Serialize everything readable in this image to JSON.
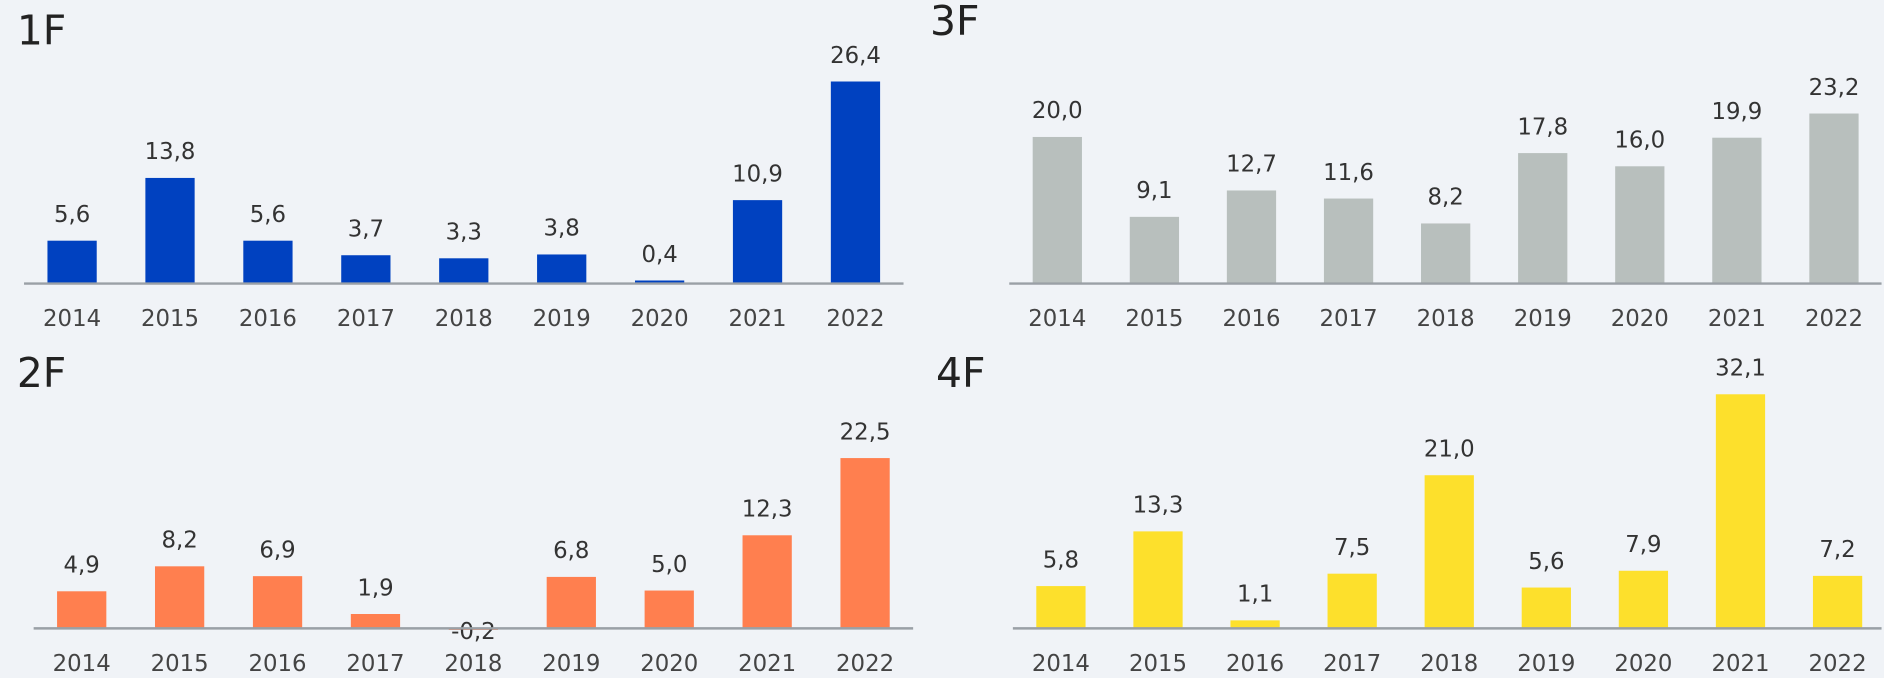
{
  "chart_data": [
    {
      "type": "bar",
      "title": "1F",
      "color": "#0041c0",
      "categories": [
        "2014",
        "2015",
        "2016",
        "2017",
        "2018",
        "2019",
        "2020",
        "2021",
        "2022"
      ],
      "values": [
        5.6,
        13.8,
        5.6,
        3.7,
        3.3,
        3.8,
        0.4,
        10.9,
        26.4
      ],
      "value_labels": [
        "5,6",
        "13,8",
        "5,6",
        "3,7",
        "3,3",
        "3,8",
        "0,4",
        "10,9",
        "26,4"
      ]
    },
    {
      "type": "bar",
      "title": "3F",
      "color": "#b8bfbd",
      "categories": [
        "2014",
        "2015",
        "2016",
        "2017",
        "2018",
        "2019",
        "2020",
        "2021",
        "2022"
      ],
      "values": [
        20.0,
        9.1,
        12.7,
        11.6,
        8.2,
        17.8,
        16.0,
        19.9,
        23.2
      ],
      "value_labels": [
        "20,0",
        "9,1",
        "12,7",
        "11,6",
        "8,2",
        "17,8",
        "16,0",
        "19,9",
        "23,2"
      ]
    },
    {
      "type": "bar",
      "title": "2F",
      "color": "#ff7f4f",
      "categories": [
        "2014",
        "2015",
        "2016",
        "2017",
        "2018",
        "2019",
        "2020",
        "2021",
        "2022"
      ],
      "values": [
        4.9,
        8.2,
        6.9,
        1.9,
        -0.2,
        6.8,
        5.0,
        12.3,
        22.5
      ],
      "value_labels": [
        "4,9",
        "8,2",
        "6,9",
        "1,9",
        "-0,2",
        "6,8",
        "5,0",
        "12,3",
        "22,5"
      ]
    },
    {
      "type": "bar",
      "title": "4F",
      "color": "#fde02c",
      "categories": [
        "2014",
        "2015",
        "2016",
        "2017",
        "2018",
        "2019",
        "2020",
        "2021",
        "2022"
      ],
      "values": [
        5.8,
        13.3,
        1.1,
        7.5,
        21.0,
        5.6,
        7.9,
        32.1,
        7.2
      ],
      "value_labels": [
        "5,8",
        "13,3",
        "1,1",
        "7,5",
        "21,0",
        "5,6",
        "7,9",
        "32,1",
        "7,2"
      ]
    }
  ]
}
